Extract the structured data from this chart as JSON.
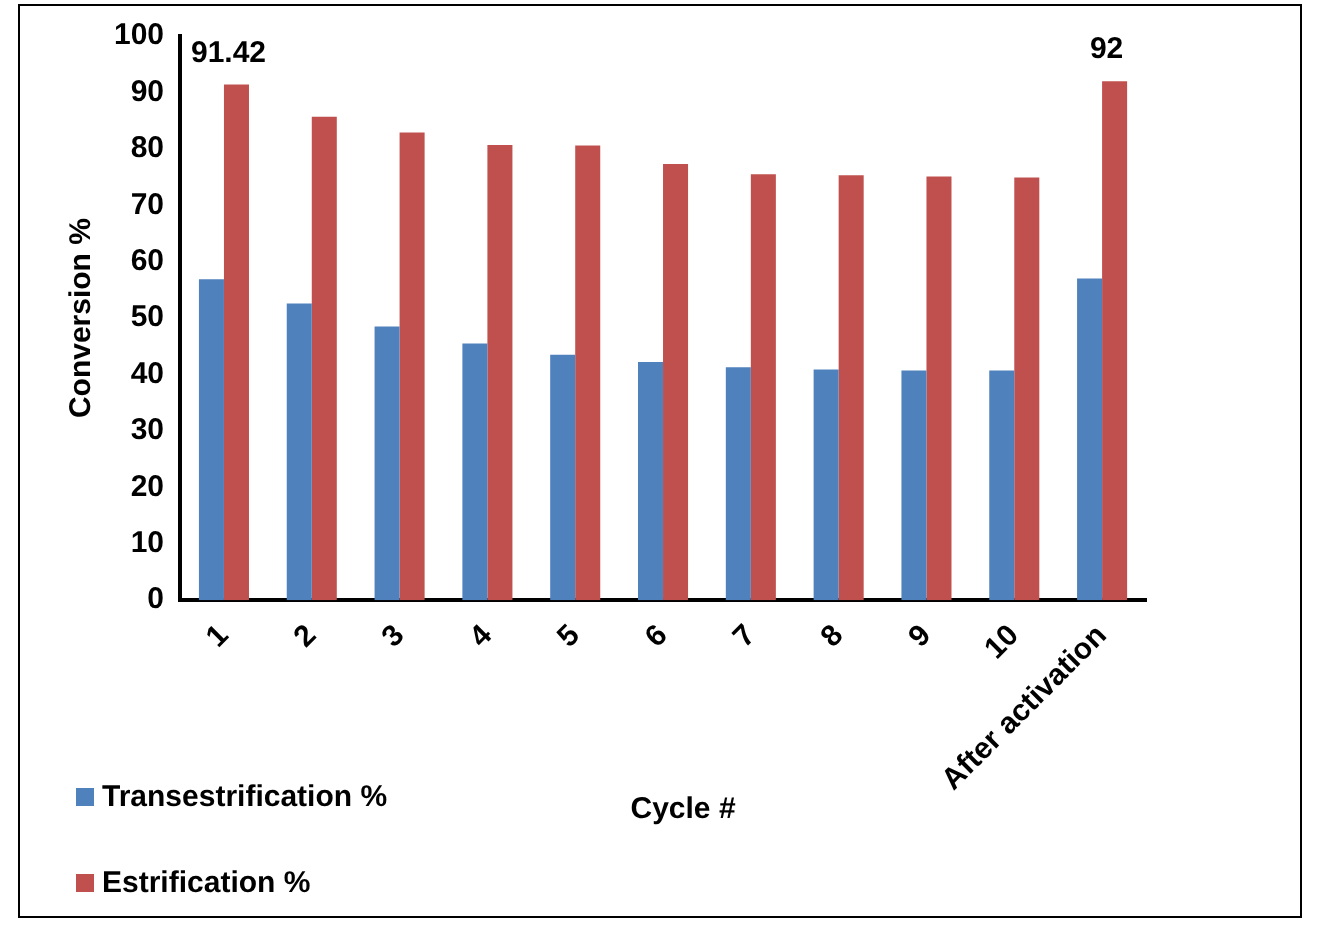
{
  "chart_data": {
    "type": "bar",
    "xlabel": "Cycle #",
    "ylabel": "Conversion %",
    "categories": [
      "1",
      "2",
      "3",
      "4",
      "5",
      "6",
      "7",
      "8",
      "9",
      "10",
      "After activation"
    ],
    "series": [
      {
        "name": "Transestrification %",
        "color": "#4f81bd",
        "values": [
          56.9,
          52.6,
          48.5,
          45.5,
          43.5,
          42.2,
          41.3,
          40.9,
          40.7,
          40.7,
          57.0
        ]
      },
      {
        "name": "Estrification %",
        "color": "#c0504d",
        "values": [
          91.42,
          85.7,
          82.9,
          80.7,
          80.6,
          77.3,
          75.5,
          75.3,
          75.1,
          74.9,
          92
        ],
        "value_labels": [
          "91.42",
          null,
          null,
          null,
          null,
          null,
          null,
          null,
          null,
          null,
          "92"
        ]
      }
    ],
    "ylim": [
      0,
      100
    ],
    "yticks": [
      0,
      10,
      20,
      30,
      40,
      50,
      60,
      70,
      80,
      90,
      100
    ],
    "grid": false,
    "legend": "bottom left"
  }
}
